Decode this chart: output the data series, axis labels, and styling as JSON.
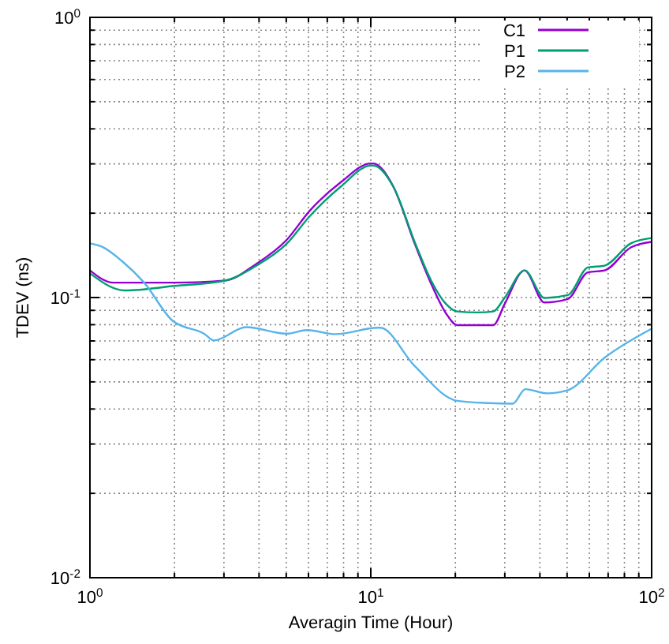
{
  "chart_data": {
    "type": "line",
    "xlabel": "Averagin Time (Hour)",
    "ylabel": "TDEV (ns)",
    "log": "xy",
    "grid": true,
    "legend": "top right",
    "line_style": "solid",
    "marker": "none",
    "xlim": [
      1,
      100
    ],
    "ylim": [
      0.01,
      1
    ],
    "xticks": [
      {
        "value": 1,
        "label": "10$^{0}$"
      },
      {
        "value": 2,
        "label": null
      },
      {
        "value": 3,
        "label": null
      },
      {
        "value": 4,
        "label": null
      },
      {
        "value": 5,
        "label": null
      },
      {
        "value": 6,
        "label": null
      },
      {
        "value": 7,
        "label": null
      },
      {
        "value": 8,
        "label": null
      },
      {
        "value": 9,
        "label": null
      },
      {
        "value": 10,
        "label": "10$^{1}$"
      },
      {
        "value": 20,
        "label": null
      },
      {
        "value": 30,
        "label": null
      },
      {
        "value": 40,
        "label": null
      },
      {
        "value": 50,
        "label": null
      },
      {
        "value": 60,
        "label": null
      },
      {
        "value": 70,
        "label": null
      },
      {
        "value": 80,
        "label": null
      },
      {
        "value": 90,
        "label": null
      },
      {
        "value": 100,
        "label": "10$^{2}$"
      }
    ],
    "yticks": [
      {
        "value": 0.01,
        "label": "10$^{-2}$"
      },
      {
        "value": 0.02,
        "label": null
      },
      {
        "value": 0.03,
        "label": null
      },
      {
        "value": 0.04,
        "label": null
      },
      {
        "value": 0.05,
        "label": null
      },
      {
        "value": 0.06,
        "label": null
      },
      {
        "value": 0.07,
        "label": null
      },
      {
        "value": 0.08,
        "label": null
      },
      {
        "value": 0.09,
        "label": null
      },
      {
        "value": 0.1,
        "label": "10$^{-1}$"
      },
      {
        "value": 0.2,
        "label": null
      },
      {
        "value": 0.3,
        "label": null
      },
      {
        "value": 0.4,
        "label": null
      },
      {
        "value": 0.5,
        "label": null
      },
      {
        "value": 0.6,
        "label": null
      },
      {
        "value": 0.7,
        "label": null
      },
      {
        "value": 0.8,
        "label": null
      },
      {
        "value": 0.9,
        "label": null
      },
      {
        "value": 1,
        "label": "10$^{0}$"
      }
    ],
    "series": [
      {
        "name": "C1",
        "color": "#9400d3",
        "x": [
          1,
          1.21,
          1.5,
          2,
          3.03,
          3.92,
          5,
          6.06,
          7.86,
          10,
          10.2,
          12,
          14.4,
          16.4,
          18.5,
          20.3,
          24,
          27.3,
          30,
          35.3,
          41.5,
          50.3,
          59.3,
          68,
          84.3,
          100
        ],
        "values": [
          0.125,
          0.113,
          0.113,
          0.113,
          0.115,
          0.132,
          0.16,
          0.204,
          0.259,
          0.301,
          0.301,
          0.25,
          0.154,
          0.112,
          0.088,
          0.0797,
          0.0797,
          0.0797,
          0.095,
          0.125,
          0.096,
          0.0988,
          0.123,
          0.125,
          0.151,
          0.158
        ]
      },
      {
        "name": "P1",
        "color": "#009e73",
        "x": [
          1,
          1.33,
          2,
          3.03,
          3.92,
          5,
          6.06,
          7.86,
          10,
          10.2,
          12,
          14.4,
          16.4,
          18.5,
          20.3,
          24,
          27.3,
          30,
          35.3,
          41.5,
          50.3,
          59.3,
          68,
          84.3,
          100
        ],
        "values": [
          0.122,
          0.106,
          0.11,
          0.115,
          0.13,
          0.155,
          0.195,
          0.25,
          0.296,
          0.296,
          0.25,
          0.156,
          0.115,
          0.095,
          0.0892,
          0.0885,
          0.0892,
          0.1,
          0.125,
          0.0996,
          0.102,
          0.128,
          0.13,
          0.156,
          0.163
        ]
      },
      {
        "name": "P2",
        "color": "#56b4e9",
        "x": [
          1,
          1.1,
          1.3,
          1.56,
          1.97,
          2.56,
          2.76,
          3.6,
          5,
          5.94,
          7.5,
          10.6,
          10.8,
          14.3,
          20.3,
          26.3,
          32,
          35.5,
          42.5,
          50.3,
          68,
          100
        ],
        "values": [
          0.156,
          0.152,
          0.135,
          0.113,
          0.0826,
          0.0741,
          0.0703,
          0.0784,
          0.0743,
          0.0765,
          0.074,
          0.078,
          0.078,
          0.0571,
          0.0428,
          0.042,
          0.0418,
          0.0471,
          0.0455,
          0.0467,
          0.061,
          0.0774
        ]
      }
    ]
  }
}
